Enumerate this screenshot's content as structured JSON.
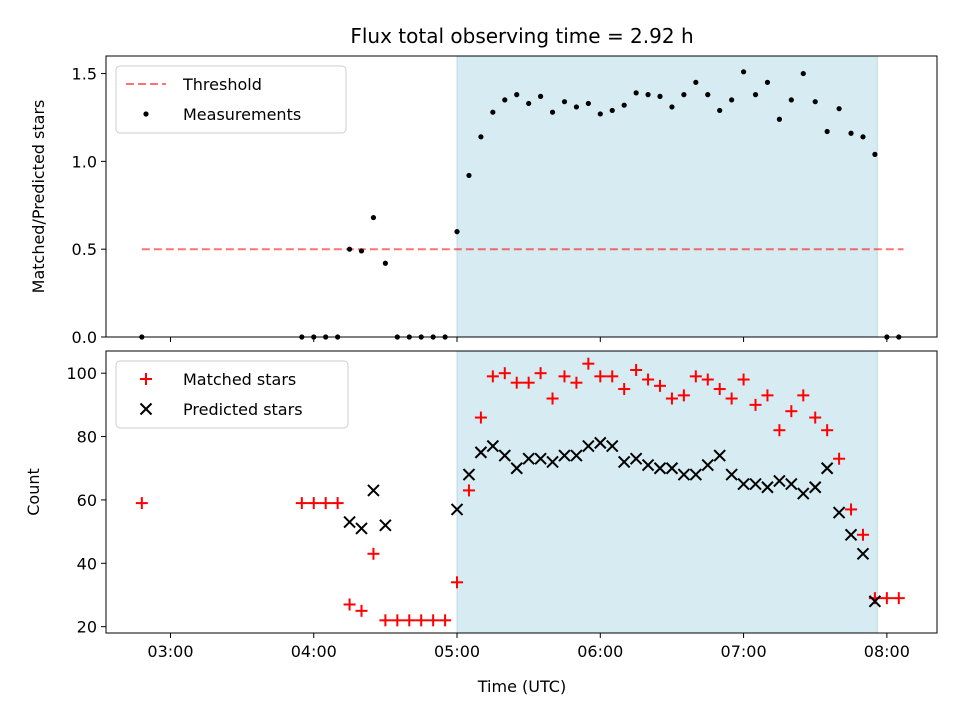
{
  "chart_data": {
    "title": "Flux total observing time = 2.92 h",
    "xlabel": "Time (UTC)",
    "x_ticks": [
      "03:00",
      "04:00",
      "05:00",
      "06:00",
      "07:00",
      "08:00"
    ],
    "xlim": [
      "02:33",
      "08:21"
    ],
    "observing_window": [
      "05:00",
      "07:56"
    ],
    "colors": {
      "window": "#add8e6",
      "threshold": "#ff0000",
      "measurements": "#000000",
      "matched": "#ff0000",
      "predicted": "#000000"
    },
    "panels": [
      {
        "type": "scatter",
        "ylabel": "Matched/Predicted stars",
        "ylim": [
          0,
          1.6
        ],
        "y_ticks": [
          0.0,
          0.5,
          1.0,
          1.5
        ],
        "y_tick_labels": [
          "0.0",
          "0.5",
          "1.0",
          "1.5"
        ],
        "legend": {
          "position": "upper-left",
          "entries": [
            "Threshold",
            "Measurements"
          ]
        },
        "threshold": {
          "name": "Threshold",
          "value": 0.5,
          "x_range": [
            "02:48",
            "08:07"
          ]
        },
        "series": [
          {
            "name": "Measurements",
            "marker": "dot",
            "points": [
              [
                "02:48",
                0.0
              ],
              [
                "03:55",
                0.0
              ],
              [
                "04:00",
                0.0
              ],
              [
                "04:05",
                0.0
              ],
              [
                "04:10",
                0.0
              ],
              [
                "04:15",
                0.5
              ],
              [
                "04:20",
                0.49
              ],
              [
                "04:25",
                0.68
              ],
              [
                "04:30",
                0.42
              ],
              [
                "04:35",
                0.0
              ],
              [
                "04:40",
                0.0
              ],
              [
                "04:45",
                0.0
              ],
              [
                "04:50",
                0.0
              ],
              [
                "04:55",
                0.0
              ],
              [
                "05:00",
                0.6
              ],
              [
                "05:05",
                0.92
              ],
              [
                "05:10",
                1.14
              ],
              [
                "05:15",
                1.28
              ],
              [
                "05:20",
                1.35
              ],
              [
                "05:25",
                1.38
              ],
              [
                "05:30",
                1.33
              ],
              [
                "05:35",
                1.37
              ],
              [
                "05:40",
                1.28
              ],
              [
                "05:45",
                1.34
              ],
              [
                "05:50",
                1.31
              ],
              [
                "05:55",
                1.33
              ],
              [
                "06:00",
                1.27
              ],
              [
                "06:05",
                1.29
              ],
              [
                "06:10",
                1.32
              ],
              [
                "06:15",
                1.39
              ],
              [
                "06:20",
                1.38
              ],
              [
                "06:25",
                1.37
              ],
              [
                "06:30",
                1.31
              ],
              [
                "06:35",
                1.38
              ],
              [
                "06:40",
                1.45
              ],
              [
                "06:45",
                1.38
              ],
              [
                "06:50",
                1.29
              ],
              [
                "06:55",
                1.35
              ],
              [
                "07:00",
                1.51
              ],
              [
                "07:05",
                1.38
              ],
              [
                "07:10",
                1.45
              ],
              [
                "07:15",
                1.24
              ],
              [
                "07:20",
                1.35
              ],
              [
                "07:25",
                1.5
              ],
              [
                "07:30",
                1.34
              ],
              [
                "07:35",
                1.17
              ],
              [
                "07:40",
                1.3
              ],
              [
                "07:45",
                1.16
              ],
              [
                "07:50",
                1.14
              ],
              [
                "07:55",
                1.04
              ],
              [
                "08:00",
                0.0
              ],
              [
                "08:05",
                0.0
              ]
            ]
          }
        ]
      },
      {
        "type": "scatter",
        "ylabel": "Count",
        "ylim": [
          18,
          107
        ],
        "y_ticks": [
          20,
          40,
          60,
          80,
          100
        ],
        "y_tick_labels": [
          "20",
          "40",
          "60",
          "80",
          "100"
        ],
        "legend": {
          "position": "upper-left",
          "entries": [
            "Matched stars",
            "Predicted stars"
          ]
        },
        "series": [
          {
            "name": "Matched stars",
            "marker": "plus",
            "points": [
              [
                "02:48",
                59
              ],
              [
                "03:55",
                59
              ],
              [
                "04:00",
                59
              ],
              [
                "04:05",
                59
              ],
              [
                "04:10",
                59
              ],
              [
                "04:15",
                27
              ],
              [
                "04:20",
                25
              ],
              [
                "04:25",
                43
              ],
              [
                "04:30",
                22
              ],
              [
                "04:35",
                22
              ],
              [
                "04:40",
                22
              ],
              [
                "04:45",
                22
              ],
              [
                "04:50",
                22
              ],
              [
                "04:55",
                22
              ],
              [
                "05:00",
                34
              ],
              [
                "05:05",
                63
              ],
              [
                "05:10",
                86
              ],
              [
                "05:15",
                99
              ],
              [
                "05:20",
                100
              ],
              [
                "05:25",
                97
              ],
              [
                "05:30",
                97
              ],
              [
                "05:35",
                100
              ],
              [
                "05:40",
                92
              ],
              [
                "05:45",
                99
              ],
              [
                "05:50",
                97
              ],
              [
                "05:55",
                103
              ],
              [
                "06:00",
                99
              ],
              [
                "06:05",
                99
              ],
              [
                "06:10",
                95
              ],
              [
                "06:15",
                101
              ],
              [
                "06:20",
                98
              ],
              [
                "06:25",
                96
              ],
              [
                "06:30",
                92
              ],
              [
                "06:35",
                93
              ],
              [
                "06:40",
                99
              ],
              [
                "06:45",
                98
              ],
              [
                "06:50",
                95
              ],
              [
                "06:55",
                92
              ],
              [
                "07:00",
                98
              ],
              [
                "07:05",
                90
              ],
              [
                "07:10",
                93
              ],
              [
                "07:15",
                82
              ],
              [
                "07:20",
                88
              ],
              [
                "07:25",
                93
              ],
              [
                "07:30",
                86
              ],
              [
                "07:35",
                82
              ],
              [
                "07:40",
                73
              ],
              [
                "07:45",
                57
              ],
              [
                "07:50",
                49
              ],
              [
                "07:55",
                29
              ],
              [
                "08:00",
                29
              ],
              [
                "08:05",
                29
              ]
            ]
          },
          {
            "name": "Predicted stars",
            "marker": "x",
            "points": [
              [
                "04:15",
                53
              ],
              [
                "04:20",
                51
              ],
              [
                "04:25",
                63
              ],
              [
                "04:30",
                52
              ],
              [
                "05:00",
                57
              ],
              [
                "05:05",
                68
              ],
              [
                "05:10",
                75
              ],
              [
                "05:15",
                77
              ],
              [
                "05:20",
                74
              ],
              [
                "05:25",
                70
              ],
              [
                "05:30",
                73
              ],
              [
                "05:35",
                73
              ],
              [
                "05:40",
                72
              ],
              [
                "05:45",
                74
              ],
              [
                "05:50",
                74
              ],
              [
                "05:55",
                77
              ],
              [
                "06:00",
                78
              ],
              [
                "06:05",
                77
              ],
              [
                "06:10",
                72
              ],
              [
                "06:15",
                73
              ],
              [
                "06:20",
                71
              ],
              [
                "06:25",
                70
              ],
              [
                "06:30",
                70
              ],
              [
                "06:35",
                68
              ],
              [
                "06:40",
                68
              ],
              [
                "06:45",
                71
              ],
              [
                "06:50",
                74
              ],
              [
                "06:55",
                68
              ],
              [
                "07:00",
                65
              ],
              [
                "07:05",
                65
              ],
              [
                "07:10",
                64
              ],
              [
                "07:15",
                66
              ],
              [
                "07:20",
                65
              ],
              [
                "07:25",
                62
              ],
              [
                "07:30",
                64
              ],
              [
                "07:35",
                70
              ],
              [
                "07:40",
                56
              ],
              [
                "07:45",
                49
              ],
              [
                "07:50",
                43
              ],
              [
                "07:55",
                28
              ]
            ]
          }
        ]
      }
    ]
  }
}
